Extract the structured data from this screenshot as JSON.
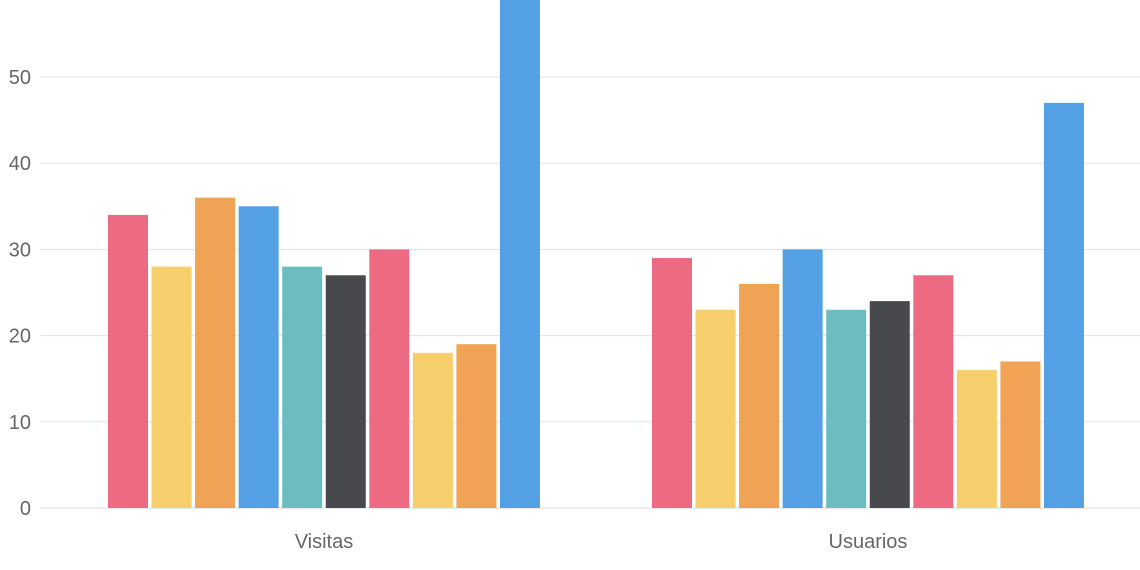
{
  "chart_data": {
    "type": "bar",
    "categories": [
      "Visitas",
      "Usuarios"
    ],
    "series": [
      {
        "values": [
          34,
          29
        ],
        "color": "#EC6B83"
      },
      {
        "values": [
          28,
          23
        ],
        "color": "#F6CE6B"
      },
      {
        "values": [
          36,
          26
        ],
        "color": "#F1A355"
      },
      {
        "values": [
          35,
          30
        ],
        "color": "#53A0E5"
      },
      {
        "values": [
          28,
          23
        ],
        "color": "#6BBDC0"
      },
      {
        "values": [
          27,
          24
        ],
        "color": "#47494C"
      },
      {
        "values": [
          30,
          27
        ],
        "color": "#EC6B83"
      },
      {
        "values": [
          18,
          16
        ],
        "color": "#F6CE6B"
      },
      {
        "values": [
          19,
          17
        ],
        "color": "#F1A355"
      },
      {
        "values": [
          59,
          47
        ],
        "color": "#53A0E5"
      }
    ],
    "yticks": [
      0,
      10,
      20,
      30,
      40,
      50
    ],
    "ylim": [
      0,
      59
    ],
    "grid": true,
    "legend": "none"
  }
}
